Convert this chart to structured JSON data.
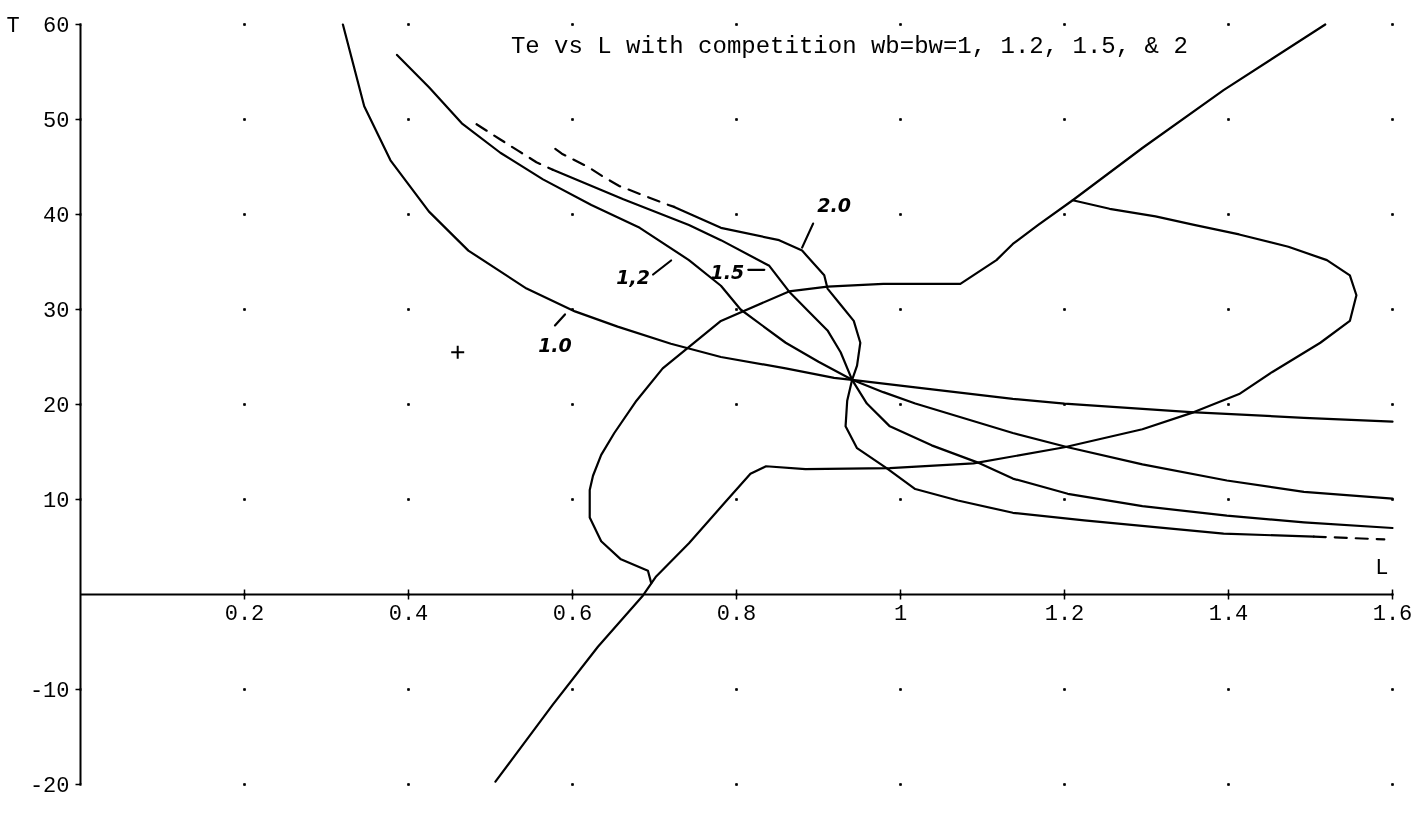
{
  "chart_data": {
    "type": "line",
    "title": "Te vs L with competition wb=bw=1, 1.2, 1.5, & 2",
    "xlabel": "L",
    "ylabel": "T",
    "xlim": [
      0,
      1.6
    ],
    "ylim": [
      -20,
      60
    ],
    "xticks": [
      0.2,
      0.4,
      0.6,
      0.8,
      1,
      1.2,
      1.4,
      1.6
    ],
    "yticks": [
      -20,
      -10,
      10,
      20,
      30,
      40,
      50,
      60
    ],
    "grid": true,
    "series": [
      {
        "color": "#000000",
        "x": [
          0.32,
          0.346,
          0.378,
          0.425,
          0.473,
          0.544,
          0.603,
          0.655,
          0.72,
          0.781,
          0.86,
          0.919,
          0.941,
          1.018,
          1.137,
          1.2,
          1.354,
          1.492,
          1.6
        ],
        "values": [
          60,
          51.4,
          45.7,
          40.3,
          36.2,
          32.2,
          29.8,
          28.2,
          26.4,
          25.0,
          23.8,
          22.8,
          22.6,
          21.8,
          20.6,
          20.1,
          19.2,
          18.6,
          18.2
        ]
      },
      {
        "color": "#000000",
        "x": [
          0.386,
          0.425,
          0.465,
          0.512,
          0.564,
          0.623,
          0.682,
          0.742,
          0.781,
          0.805,
          0.86,
          0.9,
          0.941,
          0.979,
          1.018,
          1.137,
          1.204,
          1.295,
          1.398,
          1.492,
          1.6
        ],
        "values": [
          56.8,
          53.4,
          49.6,
          46.5,
          43.7,
          41.0,
          38.6,
          35.2,
          32.5,
          30.0,
          26.5,
          24.5,
          22.6,
          21.3,
          20.1,
          17.0,
          15.5,
          13.7,
          12.0,
          10.8,
          10.1
        ]
      },
      {
        "color": "#000000",
        "line_style": "dashed",
        "x": [
          0.483,
          0.512,
          0.534,
          0.556,
          0.576
        ],
        "values": [
          49.5,
          47.9,
          46.7,
          45.5,
          44.7
        ]
      },
      {
        "color": "#000000",
        "x": [
          0.576,
          0.662,
          0.742,
          0.781,
          0.84,
          0.864,
          0.888,
          0.911,
          0.927,
          0.941,
          0.959,
          0.987,
          1.038,
          1.097,
          1.137,
          1.204,
          1.295,
          1.398,
          1.492,
          1.6
        ],
        "values": [
          44.7,
          41.6,
          38.9,
          37.3,
          34.6,
          31.9,
          29.8,
          27.8,
          25.5,
          22.6,
          20.1,
          17.7,
          15.7,
          13.8,
          12.2,
          10.6,
          9.3,
          8.3,
          7.6,
          7.0
        ]
      },
      {
        "color": "#000000",
        "line_style": "dashed",
        "x": [
          0.579,
          0.587,
          0.619,
          0.637,
          0.657,
          0.714,
          0.724
        ],
        "values": [
          46.9,
          46.4,
          45.0,
          44.0,
          43.0,
          41.1,
          40.8
        ]
      },
      {
        "color": "#000000",
        "x": [
          0.724,
          0.781,
          0.852,
          0.88,
          0.907,
          0.911,
          0.927,
          0.943,
          0.951,
          0.947,
          0.941,
          0.935,
          0.933,
          0.947,
          0.983,
          1.018,
          1.07,
          1.137,
          1.224,
          1.394,
          1.504
        ],
        "values": [
          40.8,
          38.6,
          37.3,
          36.2,
          33.6,
          32.2,
          30.5,
          28.8,
          26.5,
          24.1,
          22.6,
          20.4,
          17.7,
          15.4,
          13.3,
          11.1,
          9.9,
          8.6,
          7.8,
          6.4,
          6.1
        ]
      },
      {
        "color": "#000000",
        "line_style": "dashed",
        "x": [
          1.504,
          1.59
        ],
        "values": [
          6.1,
          5.8
        ]
      },
      {
        "color": "#000000",
        "x": [
          0.506,
          0.576,
          0.631,
          0.686,
          0.702,
          0.742,
          0.785,
          0.817,
          0.836,
          0.884,
          0.987,
          1.089,
          1.2,
          1.295,
          1.358,
          1.413,
          1.453,
          1.512,
          1.548,
          1.556,
          1.548,
          1.52,
          1.473,
          1.413,
          1.358,
          1.311,
          1.255,
          1.21
        ],
        "values": [
          -19.7,
          -11.6,
          -5.5,
          -0.1,
          1.9,
          5.4,
          9.6,
          12.7,
          13.5,
          13.2,
          13.3,
          13.8,
          15.5,
          17.4,
          19.2,
          21.1,
          23.4,
          26.5,
          28.8,
          31.5,
          33.6,
          35.2,
          36.6,
          37.9,
          38.9,
          39.8,
          40.6,
          41.5
        ]
      },
      {
        "color": "#000000",
        "x": [
          0.696,
          0.692,
          0.659,
          0.635,
          0.621,
          0.621,
          0.625,
          0.635,
          0.651,
          0.678,
          0.71,
          0.781,
          0.864,
          0.911,
          0.979,
          1.073,
          1.117,
          1.137,
          1.168,
          1.21,
          1.295,
          1.394,
          1.518
        ],
        "values": [
          1.2,
          2.5,
          3.7,
          5.6,
          8.1,
          11.0,
          12.5,
          14.7,
          17.0,
          20.4,
          23.8,
          28.8,
          31.9,
          32.4,
          32.7,
          32.7,
          35.2,
          36.9,
          38.9,
          41.5,
          47.0,
          53.1,
          60
        ]
      },
      {
        "type": "scatter",
        "marker": "cross",
        "color": "#000000",
        "x": [
          0.46
        ],
        "values": [
          25.5
        ]
      }
    ],
    "annotations": [
      {
        "text": "1.0",
        "x": 0.603,
        "y": 29.8
      },
      {
        "text": "1,2",
        "x": 0.73,
        "y": 36.0
      },
      {
        "text": "1.5",
        "x": 0.84,
        "y": 34.6
      },
      {
        "text": "2.0",
        "x": 0.88,
        "y": 36.2
      }
    ]
  }
}
